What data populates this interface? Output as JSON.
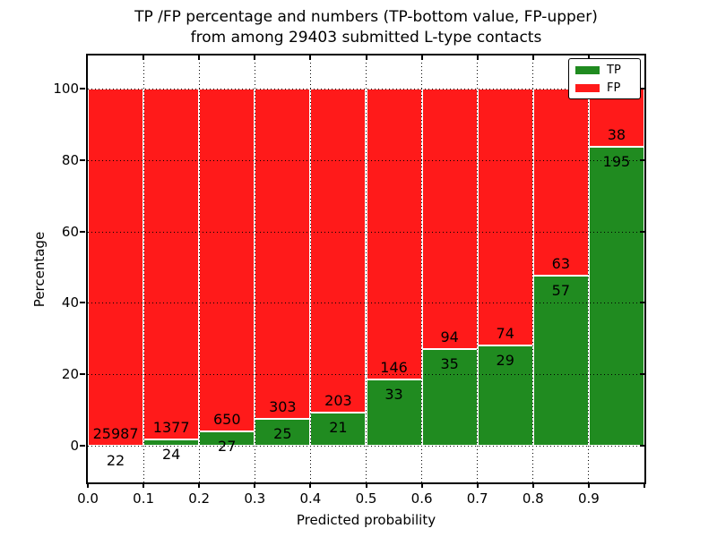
{
  "title_line1": "TP /FP percentage and numbers (TP-bottom value, FP-upper)",
  "title_line2": "from among 29403 submitted L-type contacts",
  "chart_data": {
    "type": "bar",
    "stacked": true,
    "normalized_to_percent": true,
    "title": "TP /FP percentage and numbers (TP-bottom value, FP-upper) from among 29403 submitted L-type contacts",
    "xlabel": "Predicted probability",
    "ylabel": "Percentage",
    "total_contacts": 29403,
    "x_bins": [
      "0.0-0.1",
      "0.1-0.2",
      "0.2-0.3",
      "0.3-0.4",
      "0.4-0.5",
      "0.5-0.6",
      "0.6-0.7",
      "0.7-0.8",
      "0.8-0.9",
      "0.9-1.0"
    ],
    "x_ticks": [
      "0.0",
      "0.1",
      "0.2",
      "0.3",
      "0.4",
      "0.5",
      "0.6",
      "0.7",
      "0.8",
      "0.9"
    ],
    "y_ticks": [
      0,
      20,
      40,
      60,
      80,
      100
    ],
    "xlim": [
      0.0,
      1.0
    ],
    "ylim": [
      -10,
      109
    ],
    "grid": true,
    "series": [
      {
        "name": "TP",
        "color": "#208b20",
        "values": [
          22,
          24,
          27,
          25,
          21,
          33,
          35,
          29,
          57,
          195
        ]
      },
      {
        "name": "FP",
        "color": "#ff1a1a",
        "values": [
          25987,
          1377,
          650,
          303,
          203,
          146,
          94,
          74,
          63,
          38
        ]
      }
    ],
    "tp_percent_by_bin": [
      0.08,
      1.71,
      3.99,
      7.62,
      9.38,
      18.44,
      27.13,
      28.16,
      47.5,
      83.69
    ],
    "legend": {
      "position": "upper right",
      "entries": [
        "TP",
        "FP"
      ]
    }
  }
}
